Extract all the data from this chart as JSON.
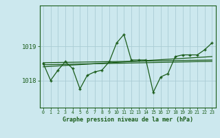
{
  "title": "Graphe pression niveau de la mer (hPa)",
  "bg_color": "#cce8ee",
  "plot_bg_color": "#cce8ee",
  "line_color": "#1a5c1a",
  "grid_color": "#aaccd4",
  "ylabel_ticks": [
    1018,
    1019
  ],
  "xlim": [
    -0.5,
    23.5
  ],
  "ylim": [
    1017.2,
    1020.2
  ],
  "x": [
    0,
    1,
    2,
    3,
    4,
    5,
    6,
    7,
    8,
    9,
    10,
    11,
    12,
    13,
    14,
    15,
    16,
    17,
    18,
    19,
    20,
    21,
    22,
    23
  ],
  "main_series": [
    1018.5,
    1018.0,
    1018.3,
    1018.55,
    1018.35,
    1017.75,
    1018.15,
    1018.25,
    1018.3,
    1018.55,
    1019.1,
    1019.35,
    1018.6,
    1018.6,
    1018.6,
    1017.65,
    1018.1,
    1018.2,
    1018.7,
    1018.75,
    1018.75,
    1018.75,
    1018.9,
    1019.1
  ],
  "trend1_x": [
    0,
    23
  ],
  "trend1_y": [
    1018.52,
    1018.6
  ],
  "trend2_x": [
    0,
    23
  ],
  "trend2_y": [
    1018.46,
    1018.56
  ],
  "trend3_x": [
    0,
    23
  ],
  "trend3_y": [
    1018.4,
    1018.7
  ]
}
